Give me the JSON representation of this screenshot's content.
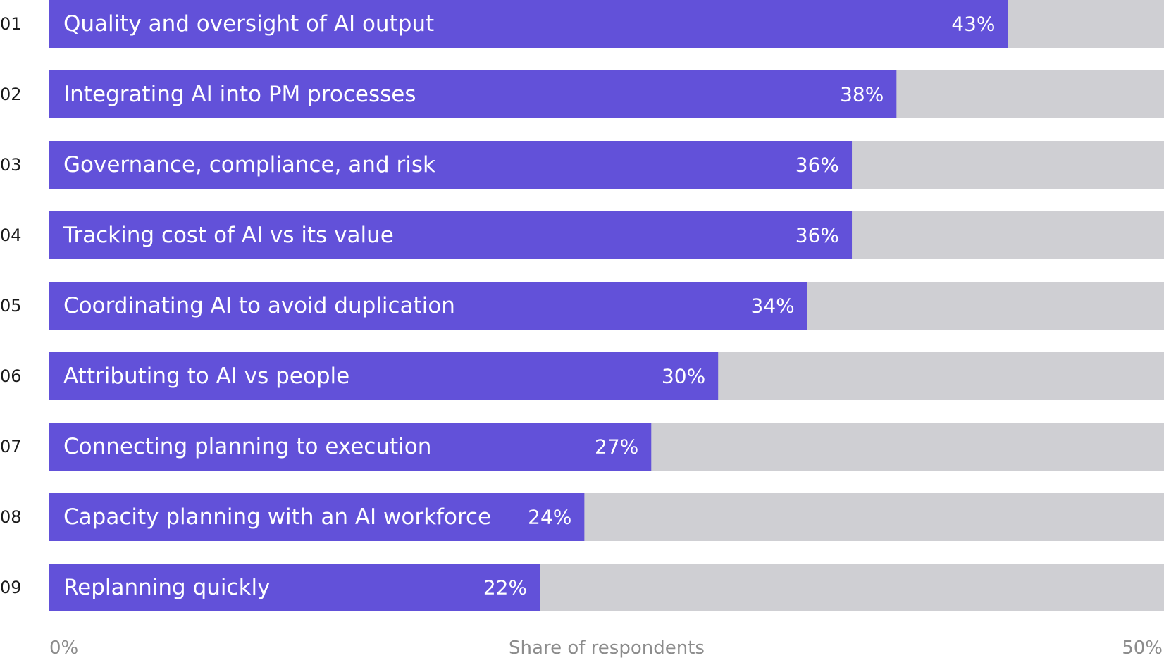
{
  "chart_data": {
    "type": "bar",
    "orientation": "horizontal",
    "xlabel": "Share of respondents",
    "xlim": [
      0,
      50
    ],
    "x_ticks": [
      "0%",
      "50%"
    ],
    "grid": false,
    "legend": "none",
    "colors": {
      "bar": "#6251d9",
      "track": "#cfcfd3",
      "label_text": "#ffffff",
      "number_text": "#1a1a1a",
      "axis_text": "#8c8c8c"
    },
    "rows": [
      {
        "rank": "01",
        "label": "Quality and oversight of AI output",
        "value": 43,
        "value_label": "43%"
      },
      {
        "rank": "02",
        "label": "Integrating AI into PM processes",
        "value": 38,
        "value_label": "38%"
      },
      {
        "rank": "03",
        "label": "Governance, compliance, and risk",
        "value": 36,
        "value_label": "36%"
      },
      {
        "rank": "04",
        "label": "Tracking cost of AI vs its value",
        "value": 36,
        "value_label": "36%"
      },
      {
        "rank": "05",
        "label": "Coordinating AI to avoid duplication",
        "value": 34,
        "value_label": "34%"
      },
      {
        "rank": "06",
        "label": "Attributing to AI vs people",
        "value": 30,
        "value_label": "30%"
      },
      {
        "rank": "07",
        "label": "Connecting planning to execution",
        "value": 27,
        "value_label": "27%"
      },
      {
        "rank": "08",
        "label": "Capacity planning with an AI workforce",
        "value": 24,
        "value_label": "24%"
      },
      {
        "rank": "09",
        "label": "Replanning quickly",
        "value": 22,
        "value_label": "22%"
      }
    ]
  }
}
